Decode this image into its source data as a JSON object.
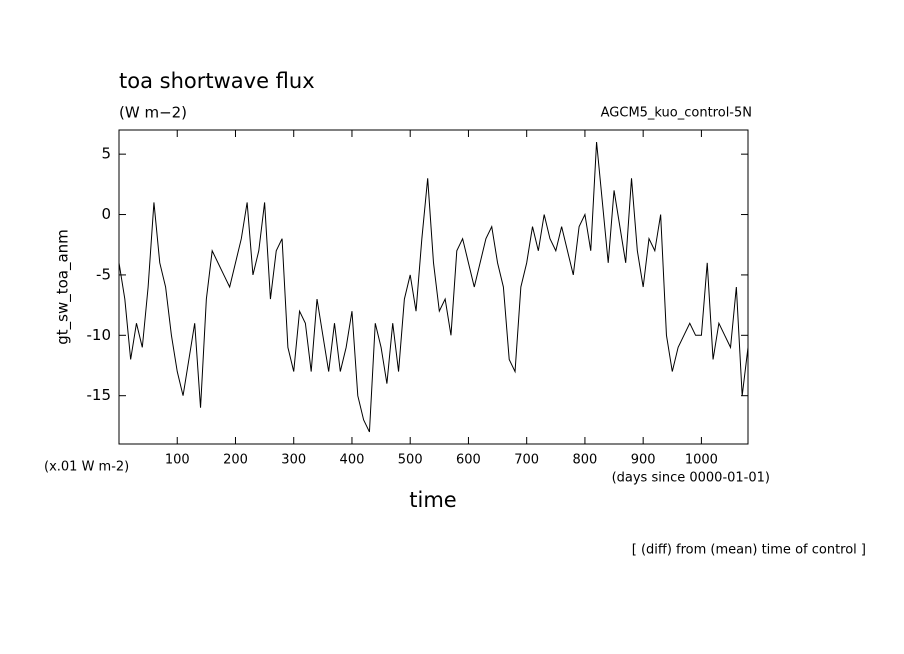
{
  "chart_data": {
    "type": "line",
    "title": "toa shortwave flux",
    "subtitle": "(W m−2)",
    "experiment": "AGCM5_kuo_control-5N",
    "y_label": "gt_sw_toa_anm",
    "y_unit": "(x.01 W m-2)",
    "x_label": "time",
    "x_unit": "(days since 0000-01-01)",
    "note": "[ (diff) from (mean) time of control ]",
    "x": [
      0,
      10,
      20,
      30,
      40,
      50,
      60,
      70,
      80,
      90,
      100,
      110,
      120,
      130,
      140,
      150,
      160,
      170,
      180,
      190,
      200,
      210,
      220,
      230,
      240,
      250,
      260,
      270,
      280,
      290,
      300,
      310,
      320,
      330,
      340,
      350,
      360,
      370,
      380,
      390,
      400,
      410,
      420,
      430,
      440,
      450,
      460,
      470,
      480,
      490,
      500,
      510,
      520,
      530,
      540,
      550,
      560,
      570,
      580,
      590,
      600,
      610,
      620,
      630,
      640,
      650,
      660,
      670,
      680,
      690,
      700,
      710,
      720,
      730,
      740,
      750,
      760,
      770,
      780,
      790,
      800,
      810,
      820,
      830,
      840,
      850,
      860,
      870,
      880,
      890,
      900,
      910,
      920,
      930,
      940,
      950,
      960,
      970,
      980,
      990,
      1000,
      1010,
      1020,
      1030,
      1040,
      1050,
      1060,
      1070,
      1080
    ],
    "series": [
      {
        "name": "gt_sw_toa_anm",
        "color": "#000000",
        "values": [
          -4,
          -7,
          -12,
          -9,
          -11,
          -6,
          1,
          -4,
          -6,
          -10,
          -13,
          -15,
          -12,
          -9,
          -16,
          -7,
          -3,
          -4,
          -5,
          -6,
          -4,
          -2,
          1,
          -5,
          -3,
          1,
          -7,
          -3,
          -2,
          -11,
          -13,
          -8,
          -9,
          -13,
          -7,
          -10,
          -13,
          -9,
          -13,
          -11,
          -8,
          -15,
          -17,
          -18,
          -9,
          -11,
          -14,
          -9,
          -13,
          -7,
          -5,
          -8,
          -2,
          3,
          -4,
          -8,
          -7,
          -10,
          -3,
          -2,
          -4,
          -6,
          -4,
          -2,
          -1,
          -4,
          -6,
          -12,
          -13,
          -6,
          -4,
          -1,
          -3,
          0,
          -2,
          -3,
          -1,
          -3,
          -5,
          -1,
          0,
          -3,
          6,
          1,
          -4,
          2,
          -1,
          -4,
          3,
          -3,
          -6,
          -2,
          -3,
          0,
          -10,
          -13,
          -11,
          -10,
          -9,
          -10,
          -10,
          -4,
          -12,
          -9,
          -10,
          -11,
          -6,
          -15,
          -11
        ]
      }
    ],
    "xlim": [
      0,
      1080
    ],
    "ylim": [
      -19,
      7
    ],
    "xticks": [
      100,
      200,
      300,
      400,
      500,
      600,
      700,
      800,
      900,
      1000
    ],
    "yticks": [
      -15,
      -10,
      -5,
      0,
      5
    ]
  }
}
